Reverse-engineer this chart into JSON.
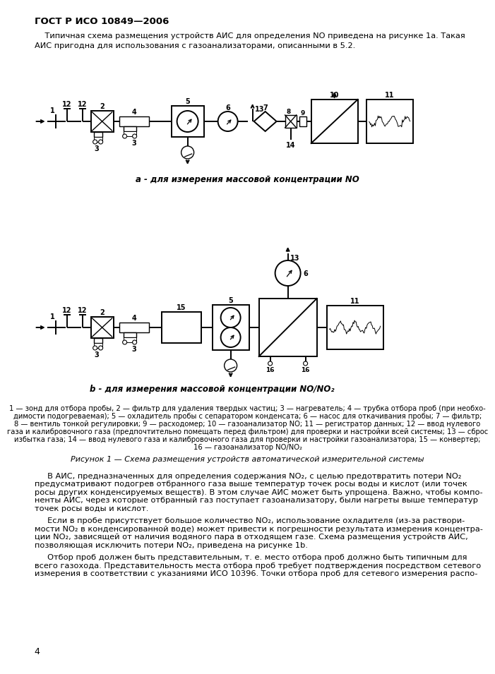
{
  "title": "ГОСТ Р ИСО 10849—2006",
  "page_number": "4",
  "bg_color": "#ffffff",
  "text_color": "#000000",
  "intro_line1": "    Типичная схема размещения устройств АИС для определения NO приведена на рисунке 1а. Такая",
  "intro_line2": "АИС пригодна для использования с газоанализаторами, описанными в 5.2.",
  "caption_a": "а - для измерения массовой концентрации NO",
  "caption_b": "b - для измерения массовой концентрации NO/NO₂",
  "figure_caption": "Рисунок 1 — Схема размещения устройств автоматической измерительной системы",
  "legend": [
    "1 — зонд для отбора пробы, 2 — фильтр для удаления твердых частиц; 3 — нагреватель; 4 — трубка отбора проб (при необхо-",
    "димости подогреваемая); 5 — охладитель пробы с сепаратором конденсата; 6 — насос для откачивания пробы; 7 — фильтр;",
    "8 — вентиль тонкой регулировки; 9 — расходомер; 10 — газоанализатор NO; 11 — регистратор данных; 12 — ввод нулевого",
    "газа и калибровочного газа (предпочтительно помещать перед фильтром) для проверки и настройки всей системы; 13 — сброс",
    "избытка газа; 14 — ввод нулевого газа и калибровочного газа для проверки и настройки газоанализатора; 15 — конвертер;",
    "16 — газоанализатор NO/NO₂"
  ],
  "body2_lines": [
    "     В АИС, предназначенных для определения содержания NO₂, с целью предотвратить потери NO₂",
    "предусматривают подогрев отбранного газа выше температур точек росы воды и кислот (или точек",
    "росы других конденсируемых веществ). В этом случае АИС может быть упрощена. Важно, чтобы компо-",
    "ненты АИС, через которые отбранный газ поступает газоанализатору, были нагреты выше температур",
    "точек росы воды и кислот."
  ],
  "body3_lines": [
    "     Если в пробе присутствует большое количество NO₂, использование охладителя (из-за раствори-",
    "мости NO₂ в конденсированной воде) может привести к погрешности результата измерения концентра-",
    "ции NO₂, зависящей от наличия водяного пара в отходящем газе. Схема размещения устройств АИС,",
    "позволяющая исключить потери NO₂, приведена на рисунке 1b."
  ],
  "body4_lines": [
    "     Отбор проб должен быть представительным, т. е. место отбора проб должно быть типичным для",
    "всего газохода. Представительность места отбора проб требует подтверждения посредством сетевого",
    "измерения в соответствии с указаниями ИСО 10396. Точки отбора проб для сетевого измерения распо-"
  ]
}
